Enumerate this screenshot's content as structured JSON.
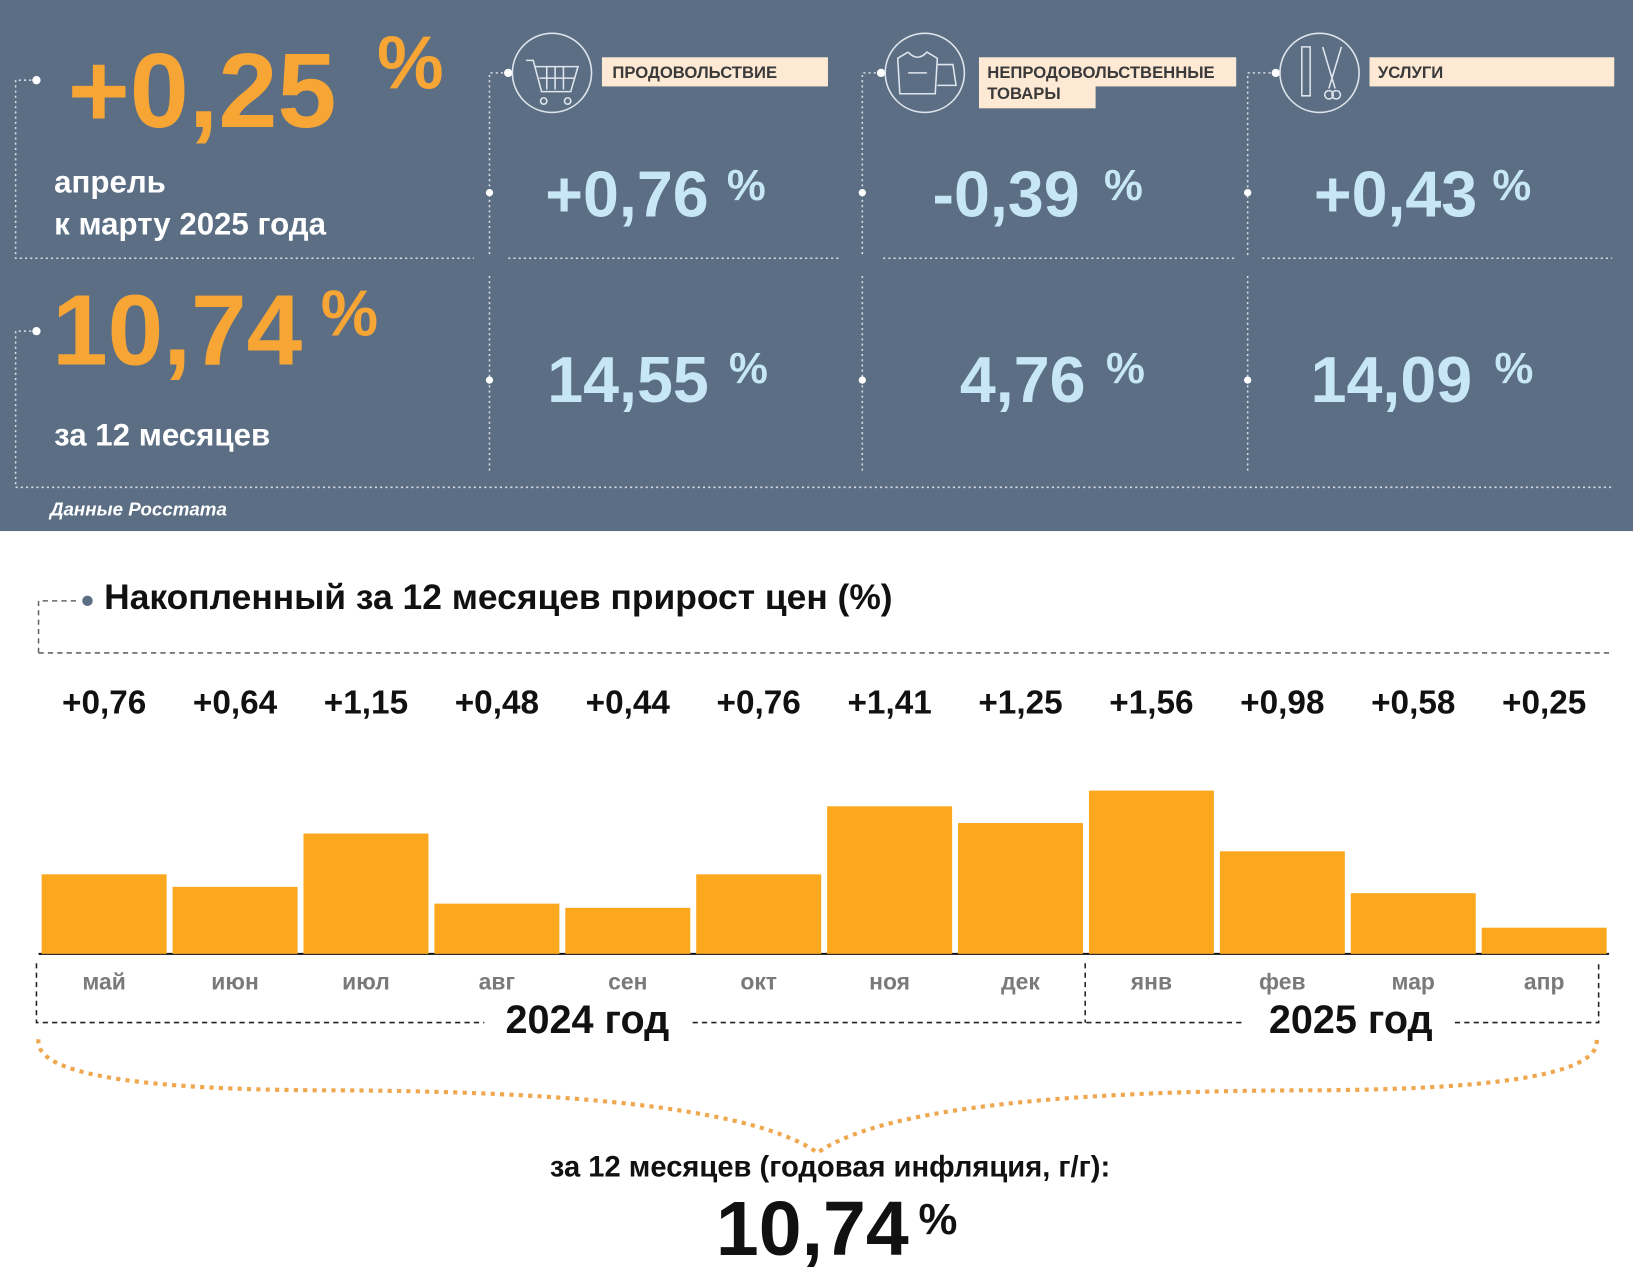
{
  "summary": {
    "percent": "%",
    "monthly": {
      "value": "+0,25",
      "label_line1": "апрель",
      "label_line2": "к марту 2025 года"
    },
    "annual": {
      "value": "10,74",
      "label": "за 12 месяцев"
    },
    "groups": [
      {
        "name_line1": "ПРОДОВОЛЬСТВИЕ",
        "monthly": "+0,76",
        "annual": "14,55"
      },
      {
        "name_line1": "НЕПРОДОВОЛЬСТВЕННЫЕ",
        "name_line2": "ТОВАРЫ",
        "monthly": "-0,39",
        "annual": "4,76"
      },
      {
        "name_line1": "УСЛУГИ",
        "monthly": "+0,43",
        "annual": "14,09"
      }
    ],
    "source": "Данные Росстата"
  },
  "chart_data": {
    "type": "bar",
    "title": "Накопленный за 12 месяцев прирост цен (%)",
    "categories": [
      "май",
      "июн",
      "июл",
      "авг",
      "сен",
      "окт",
      "ноя",
      "дек",
      "янв",
      "фев",
      "мар",
      "апр"
    ],
    "values": [
      0.76,
      0.64,
      1.15,
      0.48,
      0.44,
      0.76,
      1.41,
      1.25,
      1.56,
      0.98,
      0.58,
      0.25
    ],
    "value_labels": [
      "+0,76",
      "+0,64",
      "+1,15",
      "+0,48",
      "+0,44",
      "+0,76",
      "+1,41",
      "+1,25",
      "+1,56",
      "+0,98",
      "+0,58",
      "+0,25"
    ],
    "color": "#fba81f",
    "year_labels": [
      "2024 год",
      "2025 год"
    ],
    "footer": "за 12 месяцев (годовая инфляция, г/г):",
    "total": "10,74",
    "total_unit": "%"
  }
}
